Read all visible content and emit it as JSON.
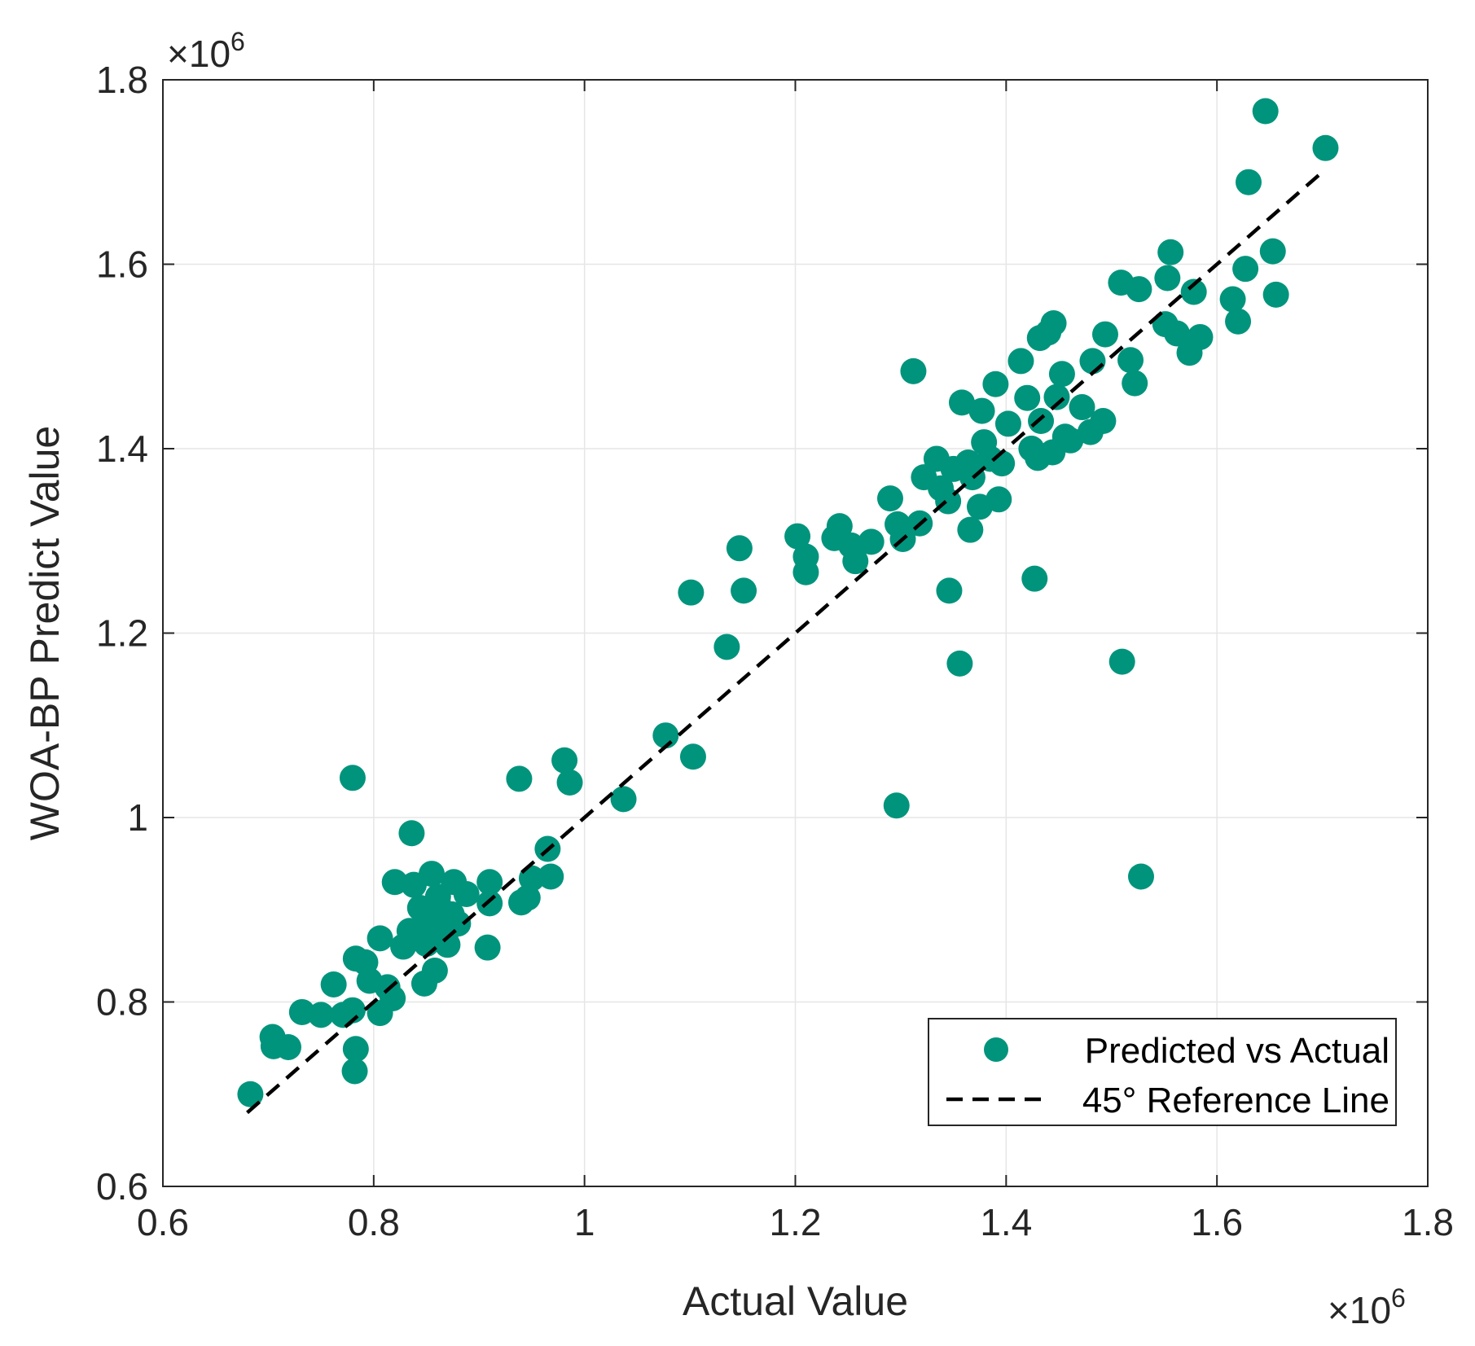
{
  "chart_data": {
    "type": "scatter",
    "xlabel": "Actual Value",
    "ylabel": "WOA-BP Predict Value",
    "xlim": [
      0.6,
      1.8
    ],
    "ylim": [
      0.6,
      1.8
    ],
    "xticks": [
      0.6,
      0.8,
      1,
      1.2,
      1.4,
      1.6,
      1.8
    ],
    "yticks": [
      0.6,
      0.8,
      1,
      1.2,
      1.4,
      1.6,
      1.8
    ],
    "x_tick_labels": [
      "0.6",
      "0.8",
      "1",
      "1.2",
      "1.4",
      "1.6",
      "1.8"
    ],
    "y_tick_labels": [
      "0.6",
      "0.8",
      "1",
      "1.2",
      "1.4",
      "1.6",
      "1.8"
    ],
    "x_exponent": {
      "base": "×10",
      "power": "6"
    },
    "y_exponent": {
      "base": "×10",
      "power": "6"
    },
    "grid": true,
    "legend_position": "bottom-right",
    "colors": {
      "points": "#00947c",
      "reference": "#000000",
      "grid": "#e6e6e6",
      "axis": "#262626"
    },
    "series": [
      {
        "name": "Predicted vs Actual",
        "style": "scatter",
        "points": [
          [
            0.683,
            0.7
          ],
          [
            0.704,
            0.762
          ],
          [
            0.705,
            0.752
          ],
          [
            0.719,
            0.751
          ],
          [
            0.732,
            0.789
          ],
          [
            0.75,
            0.786
          ],
          [
            0.762,
            0.819
          ],
          [
            0.771,
            0.786
          ],
          [
            0.78,
            0.791
          ],
          [
            0.78,
            1.043
          ],
          [
            0.782,
            0.725
          ],
          [
            0.783,
            0.749
          ],
          [
            0.783,
            0.847
          ],
          [
            0.792,
            0.843
          ],
          [
            0.796,
            0.823
          ],
          [
            0.806,
            0.788
          ],
          [
            0.806,
            0.869
          ],
          [
            0.813,
            0.816
          ],
          [
            0.818,
            0.804
          ],
          [
            0.82,
            0.93
          ],
          [
            0.828,
            0.86
          ],
          [
            0.834,
            0.877
          ],
          [
            0.836,
            0.983
          ],
          [
            0.838,
            0.927
          ],
          [
            0.84,
            0.872
          ],
          [
            0.844,
            0.902
          ],
          [
            0.848,
            0.82
          ],
          [
            0.85,
            0.863
          ],
          [
            0.853,
            0.887
          ],
          [
            0.855,
            0.939
          ],
          [
            0.858,
            0.834
          ],
          [
            0.861,
            0.914
          ],
          [
            0.864,
            0.9
          ],
          [
            0.868,
            0.872
          ],
          [
            0.87,
            0.862
          ],
          [
            0.874,
            0.895
          ],
          [
            0.876,
            0.93
          ],
          [
            0.88,
            0.885
          ],
          [
            0.888,
            0.917
          ],
          [
            0.908,
            0.859
          ],
          [
            0.91,
            0.907
          ],
          [
            0.91,
            0.93
          ],
          [
            0.938,
            1.042
          ],
          [
            0.94,
            0.908
          ],
          [
            0.946,
            0.913
          ],
          [
            0.95,
            0.934
          ],
          [
            0.965,
            0.966
          ],
          [
            0.968,
            0.936
          ],
          [
            0.981,
            1.062
          ],
          [
            0.986,
            1.038
          ],
          [
            1.037,
            1.02
          ],
          [
            1.077,
            1.089
          ],
          [
            1.103,
            1.066
          ],
          [
            1.101,
            1.244
          ],
          [
            1.135,
            1.185
          ],
          [
            1.147,
            1.292
          ],
          [
            1.151,
            1.246
          ],
          [
            1.202,
            1.305
          ],
          [
            1.21,
            1.283
          ],
          [
            1.21,
            1.266
          ],
          [
            1.237,
            1.303
          ],
          [
            1.242,
            1.316
          ],
          [
            1.253,
            1.295
          ],
          [
            1.257,
            1.278
          ],
          [
            1.272,
            1.299
          ],
          [
            1.29,
            1.346
          ],
          [
            1.296,
            1.013
          ],
          [
            1.297,
            1.318
          ],
          [
            1.302,
            1.302
          ],
          [
            1.312,
            1.484
          ],
          [
            1.318,
            1.319
          ],
          [
            1.322,
            1.369
          ],
          [
            1.334,
            1.389
          ],
          [
            1.338,
            1.357
          ],
          [
            1.345,
            1.343
          ],
          [
            1.346,
            1.246
          ],
          [
            1.35,
            1.378
          ],
          [
            1.356,
            1.167
          ],
          [
            1.358,
            1.45
          ],
          [
            1.364,
            1.385
          ],
          [
            1.366,
            1.312
          ],
          [
            1.368,
            1.369
          ],
          [
            1.375,
            1.337
          ],
          [
            1.377,
            1.441
          ],
          [
            1.379,
            1.407
          ],
          [
            1.385,
            1.389
          ],
          [
            1.39,
            1.47
          ],
          [
            1.393,
            1.345
          ],
          [
            1.396,
            1.384
          ],
          [
            1.402,
            1.427
          ],
          [
            1.414,
            1.495
          ],
          [
            1.42,
            1.455
          ],
          [
            1.424,
            1.4
          ],
          [
            1.427,
            1.259
          ],
          [
            1.43,
            1.39
          ],
          [
            1.432,
            1.52
          ],
          [
            1.433,
            1.43
          ],
          [
            1.44,
            1.526
          ],
          [
            1.444,
            1.396
          ],
          [
            1.445,
            1.536
          ],
          [
            1.448,
            1.456
          ],
          [
            1.453,
            1.481
          ],
          [
            1.456,
            1.413
          ],
          [
            1.461,
            1.409
          ],
          [
            1.472,
            1.445
          ],
          [
            1.48,
            1.418
          ],
          [
            1.482,
            1.495
          ],
          [
            1.492,
            1.43
          ],
          [
            1.494,
            1.524
          ],
          [
            1.509,
            1.58
          ],
          [
            1.51,
            1.169
          ],
          [
            1.518,
            1.496
          ],
          [
            1.522,
            1.471
          ],
          [
            1.526,
            1.573
          ],
          [
            1.528,
            0.936
          ],
          [
            1.551,
            1.535
          ],
          [
            1.553,
            1.585
          ],
          [
            1.556,
            1.613
          ],
          [
            1.562,
            1.525
          ],
          [
            1.574,
            1.504
          ],
          [
            1.578,
            1.57
          ],
          [
            1.584,
            1.521
          ],
          [
            1.615,
            1.562
          ],
          [
            1.62,
            1.538
          ],
          [
            1.627,
            1.595
          ],
          [
            1.63,
            1.689
          ],
          [
            1.646,
            1.766
          ],
          [
            1.653,
            1.614
          ],
          [
            1.656,
            1.567
          ],
          [
            1.703,
            1.726
          ]
        ]
      },
      {
        "name": "45° Reference Line",
        "style": "dashed-line",
        "points": [
          [
            0.68,
            0.68
          ],
          [
            1.7,
            1.7
          ]
        ]
      }
    ]
  }
}
